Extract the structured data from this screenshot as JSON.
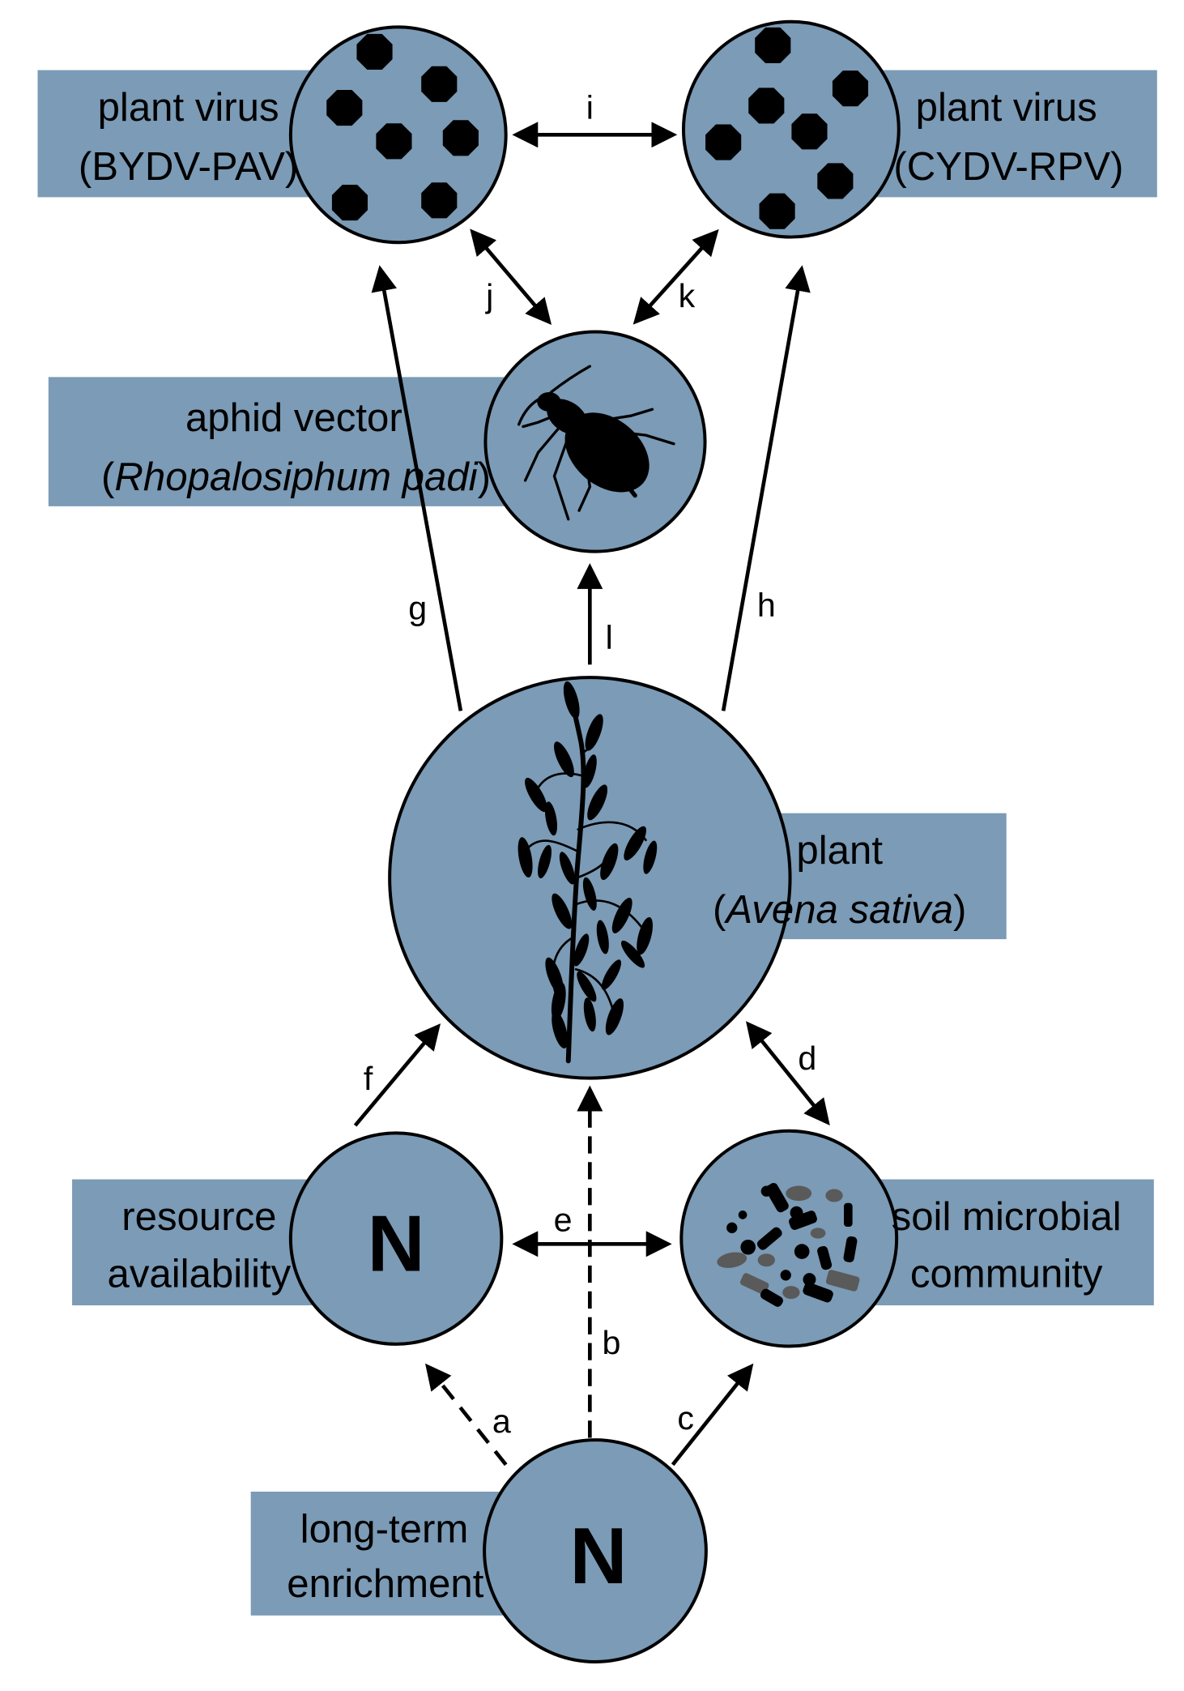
{
  "colors": {
    "node_fill": "#7b9bb6",
    "outline": "#000000",
    "microbe_grey": "#5a5a5a"
  },
  "nodes": {
    "virus_pav": {
      "line1": "plant virus",
      "line2": "(BYDV-PAV)",
      "icon": "virus-particles-icon"
    },
    "virus_rpv": {
      "line1": "plant virus",
      "line2": "(CYDV-RPV)",
      "icon": "virus-particles-icon"
    },
    "aphid": {
      "line1": "aphid vector",
      "open": "(",
      "species": "Rhopalosiphum padi",
      "close": ")",
      "icon": "aphid-icon"
    },
    "plant": {
      "line1": "plant",
      "open": "(",
      "species": "Avena sativa",
      "close": ")",
      "icon": "oat-plant-icon"
    },
    "resource": {
      "line1": "resource",
      "line2": "availability",
      "symbol": "N"
    },
    "soil": {
      "line1": "soil microbial",
      "line2": "community",
      "icon": "microbes-icon"
    },
    "enrichment": {
      "line1": "long-term",
      "line2": "enrichment",
      "symbol": "N"
    }
  },
  "edges": [
    {
      "label": "a"
    },
    {
      "label": "b"
    },
    {
      "label": "c"
    },
    {
      "label": "d"
    },
    {
      "label": "e"
    },
    {
      "label": "f"
    },
    {
      "label": "g"
    },
    {
      "label": "h"
    },
    {
      "label": "i"
    },
    {
      "label": "j"
    },
    {
      "label": "k"
    },
    {
      "label": "l"
    }
  ]
}
